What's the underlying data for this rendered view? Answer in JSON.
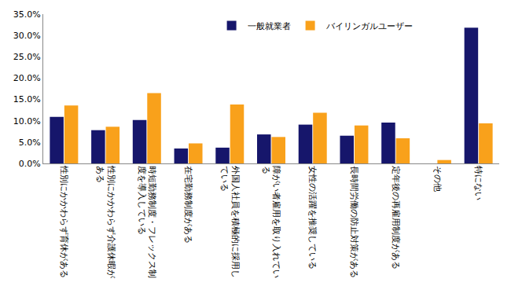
{
  "chart_data": {
    "type": "bar",
    "categories": [
      "性別にかかわらず育休がある",
      "性別にかかわらず介護休暇がある",
      "時短勤務制度・フレックス制度を導入している",
      "在宅勤務制度がある",
      "外国人社員を積極的に採用している",
      "障がい者雇用を取り入れている",
      "女性の活躍を推奨している",
      "長時間労働の防止対策がある",
      "定年後の再雇用制度がある",
      "その他",
      "特にない"
    ],
    "series": [
      {
        "name": "一般就業者",
        "color": "#16166b",
        "values": [
          10.9,
          7.8,
          10.2,
          3.5,
          3.7,
          6.8,
          9.1,
          6.5,
          9.6,
          0,
          31.8
        ]
      },
      {
        "name": "バイリンガルユーザー",
        "color": "#f9a11b",
        "values": [
          13.6,
          8.6,
          16.5,
          4.7,
          13.8,
          6.2,
          11.9,
          8.9,
          5.9,
          0.8,
          9.4
        ]
      }
    ],
    "ylim": [
      0,
      35
    ],
    "yticks": [
      {
        "value": 0,
        "label": "0.0%"
      },
      {
        "value": 5,
        "label": "5.0%"
      },
      {
        "value": 10,
        "label": "10.0%"
      },
      {
        "value": 15,
        "label": "15.0%"
      },
      {
        "value": 20,
        "label": "20.0%"
      },
      {
        "value": 25,
        "label": "25.0%"
      },
      {
        "value": 30,
        "label": "30.0%"
      },
      {
        "value": 35,
        "label": "35.0%"
      }
    ],
    "grid": false,
    "legend": "top"
  }
}
